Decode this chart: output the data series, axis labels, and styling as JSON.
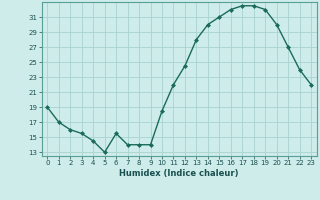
{
  "x": [
    0,
    1,
    2,
    3,
    4,
    5,
    6,
    7,
    8,
    9,
    10,
    11,
    12,
    13,
    14,
    15,
    16,
    17,
    18,
    19,
    20,
    21,
    22,
    23
  ],
  "y": [
    19,
    17,
    16,
    15.5,
    14.5,
    13,
    15.5,
    14,
    14,
    14,
    18.5,
    22,
    24.5,
    28,
    30,
    31,
    32,
    32.5,
    32.5,
    32,
    30,
    27,
    24,
    22
  ],
  "line_color": "#1a6b5a",
  "marker_color": "#1a6b5a",
  "bg_color": "#ceecea",
  "grid_color": "#a8d4d0",
  "xlabel": "Humidex (Indice chaleur)",
  "yticks": [
    13,
    15,
    17,
    19,
    21,
    23,
    25,
    27,
    29,
    31
  ],
  "xticks": [
    0,
    1,
    2,
    3,
    4,
    5,
    6,
    7,
    8,
    9,
    10,
    11,
    12,
    13,
    14,
    15,
    16,
    17,
    18,
    19,
    20,
    21,
    22,
    23
  ],
  "xlim": [
    -0.5,
    23.5
  ],
  "ylim": [
    12.5,
    33.0
  ],
  "tick_color": "#1a5050",
  "label_color": "#1a5050"
}
